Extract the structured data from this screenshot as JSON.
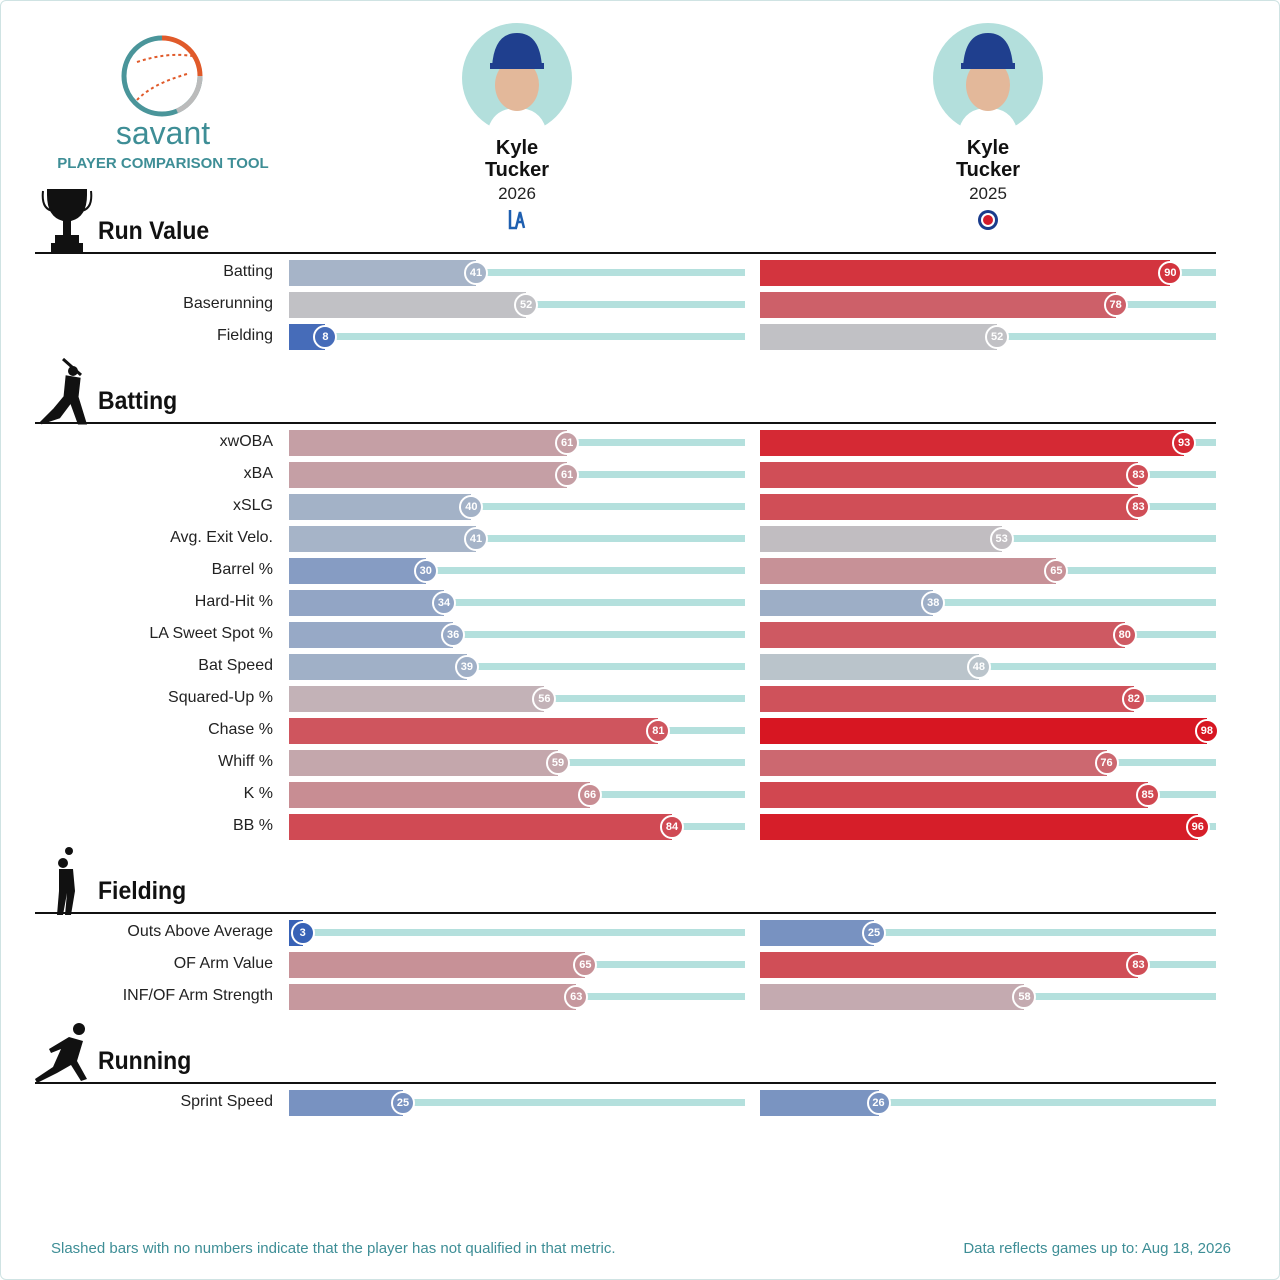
{
  "header": {
    "logo_text": "savant",
    "subtitle": "PLAYER COMPARISON TOOL"
  },
  "players": [
    {
      "name": "Kyle Tucker",
      "season": "2026"
    },
    {
      "name": "Kyle Tucker",
      "season": "2025"
    }
  ],
  "sections": [
    {
      "title": "Run Value",
      "metrics": [
        {
          "label": "Batting",
          "values": [
            41,
            90
          ]
        },
        {
          "label": "Baserunning",
          "values": [
            52,
            78
          ]
        },
        {
          "label": "Fielding",
          "values": [
            8,
            52
          ]
        }
      ]
    },
    {
      "title": "Batting",
      "metrics": [
        {
          "label": "xwOBA",
          "values": [
            61,
            93
          ]
        },
        {
          "label": "xBA",
          "values": [
            61,
            83
          ]
        },
        {
          "label": "xSLG",
          "values": [
            40,
            83
          ]
        },
        {
          "label": "Avg. Exit Velo.",
          "values": [
            41,
            53
          ]
        },
        {
          "label": "Barrel %",
          "values": [
            30,
            65
          ]
        },
        {
          "label": "Hard-Hit %",
          "values": [
            34,
            38
          ]
        },
        {
          "label": "LA Sweet Spot %",
          "values": [
            36,
            80
          ]
        },
        {
          "label": "Bat Speed",
          "values": [
            39,
            48
          ]
        },
        {
          "label": "Squared-Up %",
          "values": [
            56,
            82
          ]
        },
        {
          "label": "Chase %",
          "values": [
            81,
            98
          ]
        },
        {
          "label": "Whiff %",
          "values": [
            59,
            76
          ]
        },
        {
          "label": "K %",
          "values": [
            66,
            85
          ]
        },
        {
          "label": "BB %",
          "values": [
            84,
            96
          ]
        }
      ]
    },
    {
      "title": "Fielding",
      "metrics": [
        {
          "label": "Outs Above Average",
          "values": [
            3,
            25
          ]
        },
        {
          "label": "OF Arm Value",
          "values": [
            65,
            83
          ]
        },
        {
          "label": "INF/OF Arm Strength",
          "values": [
            63,
            58
          ]
        }
      ]
    },
    {
      "title": "Running",
      "metrics": [
        {
          "label": "Sprint Speed",
          "values": [
            25,
            26
          ]
        }
      ]
    }
  ],
  "footer": {
    "note": "Slashed bars with no numbers indicate that the player has not qualified in that metric.",
    "updated": "Data reflects games up to: Aug 18, 2026"
  }
}
